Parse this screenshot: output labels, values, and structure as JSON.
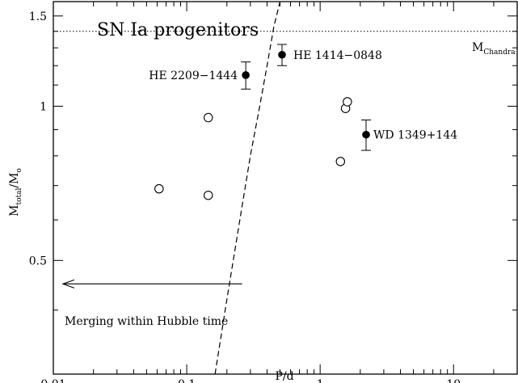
{
  "chart_data": {
    "type": "scatter",
    "title": "SN Ia progenitors",
    "xlabel": "P/d",
    "ylabel": "M_total/M_o",
    "ylabel_main": "M",
    "ylabel_sub": "total",
    "ylabel_mid": "/M",
    "ylabel_sub2": "o",
    "xscale": "log",
    "yscale": "log",
    "xlim": [
      0.01,
      30
    ],
    "ylim": [
      0.3,
      1.6
    ],
    "xticks": [
      0.01,
      0.1,
      1,
      10
    ],
    "xtick_labels": [
      "0.01",
      "0.1",
      "1",
      "10"
    ],
    "yticks": [
      0.5,
      1,
      1.5
    ],
    "ytick_labels": [
      "0.5",
      "1",
      "1.5"
    ],
    "grid": false,
    "chandra": {
      "value": 1.4,
      "label_main": "M",
      "label_sub": "Chandra"
    },
    "open_points": [
      {
        "x": 0.062,
        "y": 0.69
      },
      {
        "x": 0.145,
        "y": 0.95
      },
      {
        "x": 0.145,
        "y": 0.67
      },
      {
        "x": 1.42,
        "y": 0.78
      },
      {
        "x": 1.55,
        "y": 0.99
      },
      {
        "x": 1.6,
        "y": 1.02
      }
    ],
    "filled_points": [
      {
        "name": "HE 2209−1444",
        "x": 0.277,
        "y": 1.15,
        "ylo": 1.08,
        "yhi": 1.22
      },
      {
        "name": "HE 1414−0848",
        "x": 0.518,
        "y": 1.26,
        "ylo": 1.2,
        "yhi": 1.32
      },
      {
        "name": "WD 1349+144",
        "x": 2.21,
        "y": 0.88,
        "ylo": 0.82,
        "yhi": 0.94
      }
    ],
    "merging_curve": {
      "x": [
        0.163,
        0.2,
        0.25,
        0.3,
        0.35,
        0.4,
        0.45,
        0.5
      ],
      "y": [
        0.3,
        0.42,
        0.6,
        0.8,
        0.99,
        1.2,
        1.43,
        1.68
      ]
    },
    "merging_label": "Merging within Hubble time",
    "merging_arrow": {
      "x_from": 0.26,
      "x_to": 0.0118,
      "y": 0.45
    }
  }
}
